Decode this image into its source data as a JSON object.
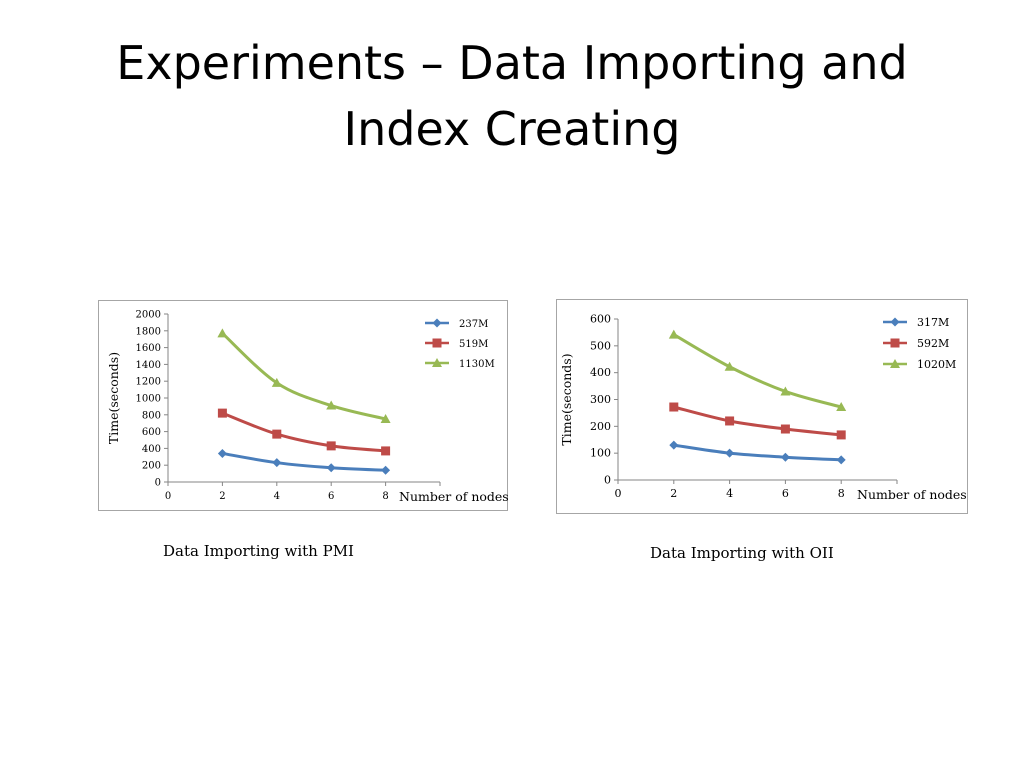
{
  "slide": {
    "title_line1": "Experiments – Data Importing and",
    "title_line2": "Index Creating"
  },
  "captions": [
    "Data Importing with PMI",
    "Data Importing with OII"
  ],
  "chart_data": [
    {
      "type": "line",
      "xlabel": "Number of nodes",
      "ylabel": "Time(seconds)",
      "xlim": [
        0,
        10
      ],
      "ylim": [
        0,
        2000
      ],
      "xticks": [
        0,
        2,
        4,
        6,
        8
      ],
      "yticks": [
        0,
        200,
        400,
        600,
        800,
        1000,
        1200,
        1400,
        1600,
        1800,
        2000
      ],
      "x": [
        2,
        4,
        6,
        8
      ],
      "legend_position": "top-right",
      "grid": false,
      "series": [
        {
          "name": "237M",
          "values": [
            340,
            230,
            170,
            140
          ],
          "color": "#4a7ebb",
          "marker": "diamond"
        },
        {
          "name": "519M",
          "values": [
            820,
            570,
            430,
            370
          ],
          "color": "#be4b48",
          "marker": "square"
        },
        {
          "name": "1130M",
          "values": [
            1770,
            1180,
            910,
            750
          ],
          "color": "#98b954",
          "marker": "triangle"
        }
      ]
    },
    {
      "type": "line",
      "xlabel": "Number of nodes",
      "ylabel": "Time(seconds)",
      "xlim": [
        0,
        10
      ],
      "ylim": [
        0,
        600
      ],
      "xticks": [
        0,
        2,
        4,
        6,
        8
      ],
      "yticks": [
        0,
        100,
        200,
        300,
        400,
        500,
        600
      ],
      "x": [
        2,
        4,
        6,
        8
      ],
      "legend_position": "top-right",
      "grid": false,
      "series": [
        {
          "name": "317M",
          "values": [
            130,
            100,
            85,
            75
          ],
          "color": "#4a7ebb",
          "marker": "diamond"
        },
        {
          "name": "592M",
          "values": [
            272,
            220,
            190,
            168
          ],
          "color": "#be4b48",
          "marker": "square"
        },
        {
          "name": "1020M",
          "values": [
            542,
            422,
            330,
            272
          ],
          "color": "#98b954",
          "marker": "triangle"
        }
      ]
    }
  ]
}
